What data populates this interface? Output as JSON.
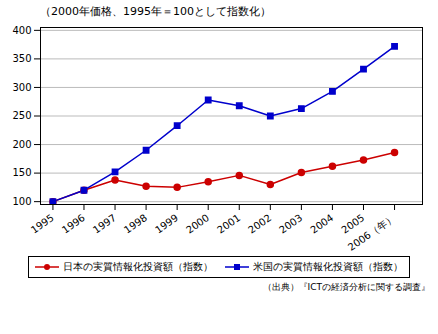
{
  "chart_data": {
    "type": "line",
    "title": "（2000年価格、1995年＝100として指数化）",
    "caption": "（出典）『ICTの経済分析に関する調査』",
    "x": [
      1995,
      1996,
      1997,
      1998,
      1999,
      2000,
      2001,
      2002,
      2003,
      2004,
      2005,
      2006
    ],
    "series": [
      {
        "name": "日本の実質情報化投資額（指数）",
        "color": "#cc0000",
        "marker": "circle",
        "values": [
          100,
          120,
          138,
          127,
          125,
          135,
          146,
          130,
          151,
          162,
          173,
          186
        ]
      },
      {
        "name": "米国の実質情報化投資額（指数）",
        "color": "#0000cc",
        "marker": "square",
        "values": [
          100,
          120,
          152,
          190,
          233,
          278,
          268,
          250,
          263,
          293,
          332,
          372
        ]
      }
    ],
    "xlim": [
      1994.6,
      2006.9
    ],
    "xticks": [
      1995,
      1996,
      1997,
      1998,
      1999,
      2000,
      2001,
      2002,
      2003,
      2004,
      2005,
      {
        "value": 2006,
        "label": "2006（年）"
      }
    ],
    "ylim": [
      95,
      405
    ],
    "yticks": [
      100,
      150,
      200,
      250,
      300,
      350,
      400
    ],
    "grid": true,
    "legend": "bottom"
  }
}
